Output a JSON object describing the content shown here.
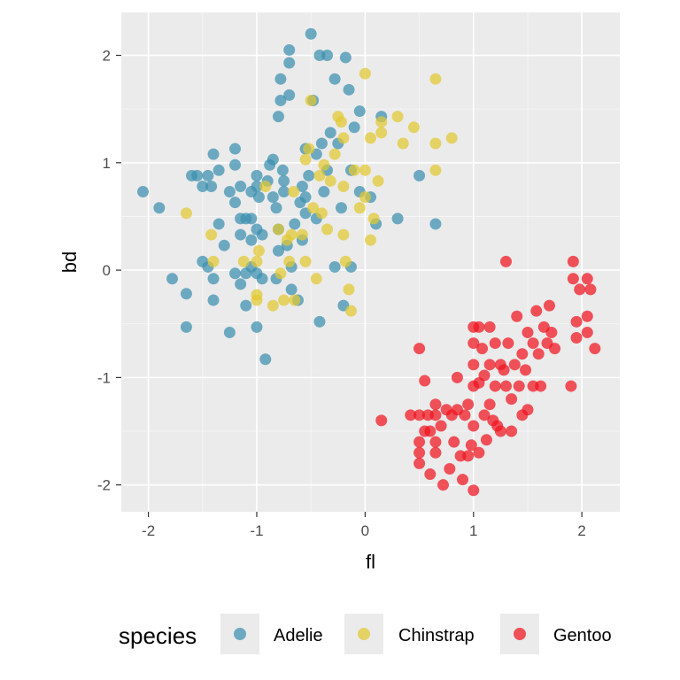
{
  "chart_data": {
    "type": "scatter",
    "title": "",
    "xlabel": "fl",
    "ylabel": "bd",
    "xlim": [
      -2.25,
      2.35
    ],
    "ylim": [
      -2.25,
      2.4
    ],
    "x_ticks": [
      -2,
      -1,
      0,
      1,
      2
    ],
    "y_ticks": [
      -2,
      -1,
      0,
      1,
      2
    ],
    "x_tick_labels": [
      "-2",
      "-1",
      "0",
      "1",
      "2"
    ],
    "y_tick_labels": [
      "-2",
      "-1",
      "0",
      "1",
      "2"
    ],
    "grid": true,
    "legend": {
      "title": "species",
      "position": "bottom",
      "entries": [
        "Adelie",
        "Chinstrap",
        "Gentoo"
      ]
    },
    "series": [
      {
        "name": "Adelie",
        "color": "#3A8FAF",
        "points": [
          [
            -2.05,
            0.73
          ],
          [
            -1.9,
            0.58
          ],
          [
            -1.78,
            -0.08
          ],
          [
            -1.65,
            -0.22
          ],
          [
            -1.65,
            -0.53
          ],
          [
            -1.6,
            0.88
          ],
          [
            -1.55,
            0.88
          ],
          [
            -1.5,
            0.08
          ],
          [
            -1.5,
            0.78
          ],
          [
            -1.45,
            0.88
          ],
          [
            -1.45,
            0.03
          ],
          [
            -1.42,
            0.78
          ],
          [
            -1.4,
            -0.28
          ],
          [
            -1.4,
            -0.08
          ],
          [
            -1.4,
            1.08
          ],
          [
            -1.35,
            0.43
          ],
          [
            -1.35,
            0.93
          ],
          [
            -1.3,
            0.23
          ],
          [
            -1.25,
            -0.58
          ],
          [
            -1.25,
            0.73
          ],
          [
            -1.2,
            0.63
          ],
          [
            -1.2,
            0.98
          ],
          [
            -1.2,
            1.13
          ],
          [
            -1.2,
            -0.03
          ],
          [
            -1.15,
            0.48
          ],
          [
            -1.15,
            0.33
          ],
          [
            -1.15,
            0.78
          ],
          [
            -1.15,
            -0.13
          ],
          [
            -1.1,
            0.48
          ],
          [
            -1.1,
            -0.03
          ],
          [
            -1.1,
            -0.33
          ],
          [
            -1.05,
            0.73
          ],
          [
            -1.05,
            0.03
          ],
          [
            -1.05,
            0.28
          ],
          [
            -1.05,
            0.48
          ],
          [
            -1.0,
            0.88
          ],
          [
            -1.0,
            0.38
          ],
          [
            -1.0,
            -0.03
          ],
          [
            -1.0,
            -0.53
          ],
          [
            -1.0,
            0.78
          ],
          [
            -0.98,
            0.68
          ],
          [
            -0.95,
            -0.08
          ],
          [
            -0.95,
            0.33
          ],
          [
            -0.92,
            -0.83
          ],
          [
            -0.9,
            0.83
          ],
          [
            -0.88,
            0.98
          ],
          [
            -0.85,
            1.03
          ],
          [
            -0.85,
            0.68
          ],
          [
            -0.82,
            0.58
          ],
          [
            -0.82,
            -0.08
          ],
          [
            -0.8,
            0.38
          ],
          [
            -0.8,
            0.18
          ],
          [
            -0.8,
            1.43
          ],
          [
            -0.78,
            1.58
          ],
          [
            -0.78,
            1.78
          ],
          [
            -0.76,
            0.93
          ],
          [
            -0.75,
            0.83
          ],
          [
            -0.75,
            0.73
          ],
          [
            -0.72,
            0.23
          ],
          [
            -0.7,
            1.63
          ],
          [
            -0.7,
            1.93
          ],
          [
            -0.7,
            2.05
          ],
          [
            -0.68,
            -0.18
          ],
          [
            -0.68,
            0.03
          ],
          [
            -0.65,
            0.43
          ],
          [
            -0.62,
            -0.28
          ],
          [
            -0.6,
            0.63
          ],
          [
            -0.58,
            0.28
          ],
          [
            -0.58,
            0.78
          ],
          [
            -0.55,
            0.68
          ],
          [
            -0.55,
            0.53
          ],
          [
            -0.55,
            1.13
          ],
          [
            -0.52,
            0.88
          ],
          [
            -0.5,
            2.2
          ],
          [
            -0.48,
            1.58
          ],
          [
            -0.45,
            0.48
          ],
          [
            -0.45,
            1.08
          ],
          [
            -0.42,
            2.0
          ],
          [
            -0.42,
            -0.48
          ],
          [
            -0.4,
            1.18
          ],
          [
            -0.38,
            0.73
          ],
          [
            -0.35,
            2.0
          ],
          [
            -0.35,
            0.93
          ],
          [
            -0.32,
            1.28
          ],
          [
            -0.28,
            1.78
          ],
          [
            -0.28,
            0.03
          ],
          [
            -0.25,
            1.18
          ],
          [
            -0.22,
            0.58
          ],
          [
            -0.2,
            -0.33
          ],
          [
            -0.18,
            1.98
          ],
          [
            -0.15,
            1.68
          ],
          [
            -0.13,
            0.93
          ],
          [
            -0.13,
            0.03
          ],
          [
            -0.1,
            1.33
          ],
          [
            -0.05,
            1.48
          ],
          [
            -0.05,
            0.73
          ],
          [
            0.05,
            0.68
          ],
          [
            0.1,
            0.43
          ],
          [
            0.15,
            1.43
          ],
          [
            0.3,
            0.48
          ],
          [
            0.5,
            0.88
          ],
          [
            0.65,
            0.43
          ]
        ]
      },
      {
        "name": "Chinstrap",
        "color": "#E2C830",
        "points": [
          [
            -1.65,
            0.53
          ],
          [
            -1.42,
            0.33
          ],
          [
            -1.4,
            0.08
          ],
          [
            -1.12,
            0.08
          ],
          [
            -1.0,
            -0.23
          ],
          [
            -1.0,
            -0.28
          ],
          [
            -1.0,
            0.08
          ],
          [
            -0.98,
            0.18
          ],
          [
            -0.92,
            0.78
          ],
          [
            -0.85,
            -0.33
          ],
          [
            -0.8,
            0.38
          ],
          [
            -0.78,
            -0.03
          ],
          [
            -0.75,
            -0.28
          ],
          [
            -0.72,
            0.28
          ],
          [
            -0.7,
            0.08
          ],
          [
            -0.68,
            0.33
          ],
          [
            -0.66,
            0.73
          ],
          [
            -0.65,
            -0.28
          ],
          [
            -0.58,
            0.33
          ],
          [
            -0.55,
            0.08
          ],
          [
            -0.55,
            1.03
          ],
          [
            -0.52,
            1.13
          ],
          [
            -0.5,
            1.58
          ],
          [
            -0.48,
            0.58
          ],
          [
            -0.45,
            -0.08
          ],
          [
            -0.42,
            0.88
          ],
          [
            -0.4,
            0.53
          ],
          [
            -0.38,
            0.98
          ],
          [
            -0.35,
            0.38
          ],
          [
            -0.32,
            0.83
          ],
          [
            -0.28,
            1.08
          ],
          [
            -0.25,
            1.43
          ],
          [
            -0.22,
            1.38
          ],
          [
            -0.2,
            1.23
          ],
          [
            -0.2,
            0.78
          ],
          [
            -0.2,
            0.33
          ],
          [
            -0.18,
            0.08
          ],
          [
            -0.15,
            -0.18
          ],
          [
            -0.13,
            -0.38
          ],
          [
            -0.1,
            0.93
          ],
          [
            -0.05,
            0.58
          ],
          [
            0.0,
            1.83
          ],
          [
            0.0,
            0.93
          ],
          [
            0.0,
            0.68
          ],
          [
            0.05,
            1.23
          ],
          [
            0.05,
            0.28
          ],
          [
            0.08,
            0.48
          ],
          [
            0.12,
            0.83
          ],
          [
            0.15,
            1.38
          ],
          [
            0.15,
            1.28
          ],
          [
            0.3,
            1.43
          ],
          [
            0.35,
            1.18
          ],
          [
            0.45,
            1.33
          ],
          [
            0.65,
            1.78
          ],
          [
            0.65,
            1.18
          ],
          [
            0.65,
            0.93
          ],
          [
            0.8,
            1.23
          ]
        ]
      },
      {
        "name": "Gentoo",
        "color": "#F0141E",
        "points": [
          [
            0.15,
            -1.4
          ],
          [
            0.42,
            -1.35
          ],
          [
            0.5,
            -1.35
          ],
          [
            0.5,
            -1.6
          ],
          [
            0.5,
            -1.7
          ],
          [
            0.5,
            -1.8
          ],
          [
            0.5,
            -0.73
          ],
          [
            0.55,
            -1.03
          ],
          [
            0.55,
            -1.5
          ],
          [
            0.58,
            -1.35
          ],
          [
            0.6,
            -1.5
          ],
          [
            0.6,
            -1.9
          ],
          [
            0.65,
            -1.35
          ],
          [
            0.65,
            -1.25
          ],
          [
            0.65,
            -1.6
          ],
          [
            0.65,
            -1.7
          ],
          [
            0.7,
            -1.45
          ],
          [
            0.72,
            -2.0
          ],
          [
            0.75,
            -1.3
          ],
          [
            0.78,
            -1.85
          ],
          [
            0.8,
            -1.35
          ],
          [
            0.82,
            -1.6
          ],
          [
            0.85,
            -1.0
          ],
          [
            0.85,
            -1.3
          ],
          [
            0.88,
            -1.73
          ],
          [
            0.9,
            -1.95
          ],
          [
            0.92,
            -1.35
          ],
          [
            0.95,
            -1.25
          ],
          [
            0.95,
            -1.73
          ],
          [
            0.98,
            -1.63
          ],
          [
            1.0,
            -0.53
          ],
          [
            1.0,
            -0.68
          ],
          [
            1.0,
            -0.88
          ],
          [
            1.0,
            -1.08
          ],
          [
            1.0,
            -1.45
          ],
          [
            1.0,
            -2.05
          ],
          [
            1.05,
            -0.53
          ],
          [
            1.05,
            -1.05
          ],
          [
            1.05,
            -1.7
          ],
          [
            1.08,
            -0.73
          ],
          [
            1.1,
            -0.98
          ],
          [
            1.1,
            -1.35
          ],
          [
            1.12,
            -1.58
          ],
          [
            1.15,
            -0.53
          ],
          [
            1.15,
            -0.88
          ],
          [
            1.15,
            -1.25
          ],
          [
            1.18,
            -1.4
          ],
          [
            1.2,
            -0.68
          ],
          [
            1.2,
            -1.08
          ],
          [
            1.22,
            -1.45
          ],
          [
            1.25,
            -0.88
          ],
          [
            1.25,
            -1.5
          ],
          [
            1.28,
            -0.93
          ],
          [
            1.3,
            0.08
          ],
          [
            1.3,
            -1.08
          ],
          [
            1.32,
            -0.68
          ],
          [
            1.35,
            -1.5
          ],
          [
            1.35,
            -1.2
          ],
          [
            1.38,
            -0.88
          ],
          [
            1.4,
            -0.43
          ],
          [
            1.42,
            -1.08
          ],
          [
            1.45,
            -0.78
          ],
          [
            1.45,
            -1.35
          ],
          [
            1.48,
            -0.93
          ],
          [
            1.5,
            -0.58
          ],
          [
            1.5,
            -1.3
          ],
          [
            1.55,
            -0.68
          ],
          [
            1.55,
            -1.08
          ],
          [
            1.58,
            -0.38
          ],
          [
            1.6,
            -0.78
          ],
          [
            1.62,
            -1.08
          ],
          [
            1.65,
            -0.53
          ],
          [
            1.68,
            -0.68
          ],
          [
            1.7,
            -0.33
          ],
          [
            1.72,
            -0.58
          ],
          [
            1.75,
            -0.73
          ],
          [
            1.9,
            -1.08
          ],
          [
            1.92,
            0.08
          ],
          [
            1.92,
            -0.08
          ],
          [
            1.95,
            -0.48
          ],
          [
            1.95,
            -0.63
          ],
          [
            1.98,
            -0.18
          ],
          [
            2.05,
            -0.08
          ],
          [
            2.05,
            -0.43
          ],
          [
            2.05,
            -0.58
          ],
          [
            2.08,
            -0.18
          ],
          [
            2.12,
            -0.73
          ]
        ]
      }
    ]
  }
}
